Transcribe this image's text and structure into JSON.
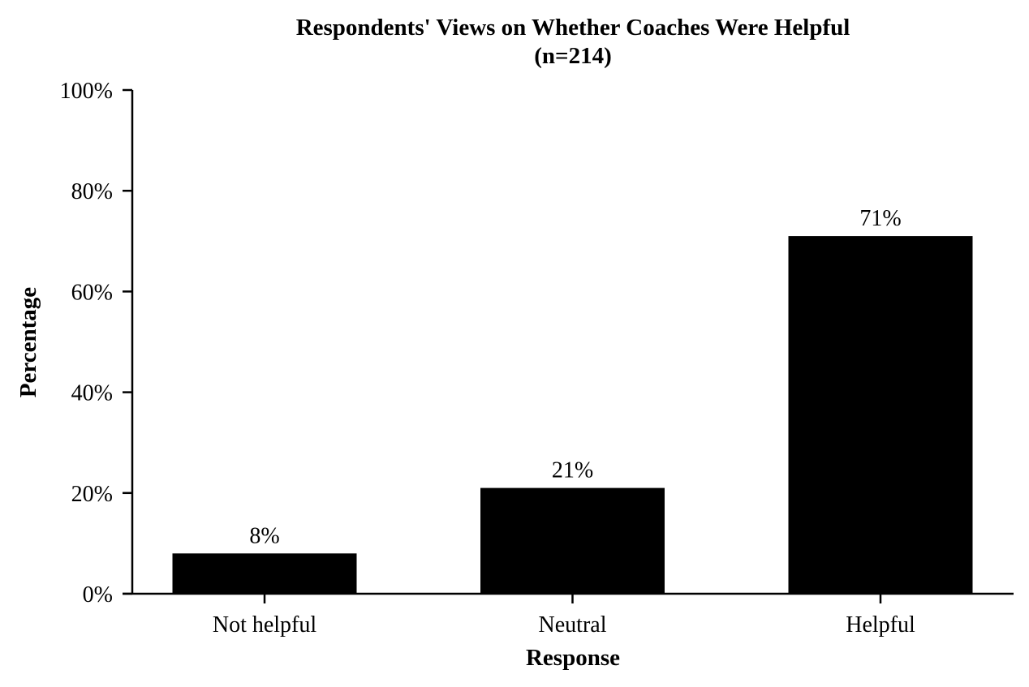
{
  "chart_data": {
    "type": "bar",
    "title": "Respondents' Views on Whether Coaches Were Helpful",
    "subtitle": "(n=214)",
    "xlabel": "Response",
    "ylabel": "Percentage",
    "categories": [
      "Not helpful",
      "Neutral",
      "Helpful"
    ],
    "values": [
      8,
      21,
      71
    ],
    "data_labels": [
      "8%",
      "21%",
      "71%"
    ],
    "ylim": [
      0,
      100
    ],
    "yticks": [
      0,
      20,
      40,
      60,
      80,
      100
    ],
    "ytick_labels": [
      "0%",
      "20%",
      "40%",
      "60%",
      "80%",
      "100%"
    ],
    "bar_color": "#000000",
    "grid": false,
    "legend": "none"
  }
}
